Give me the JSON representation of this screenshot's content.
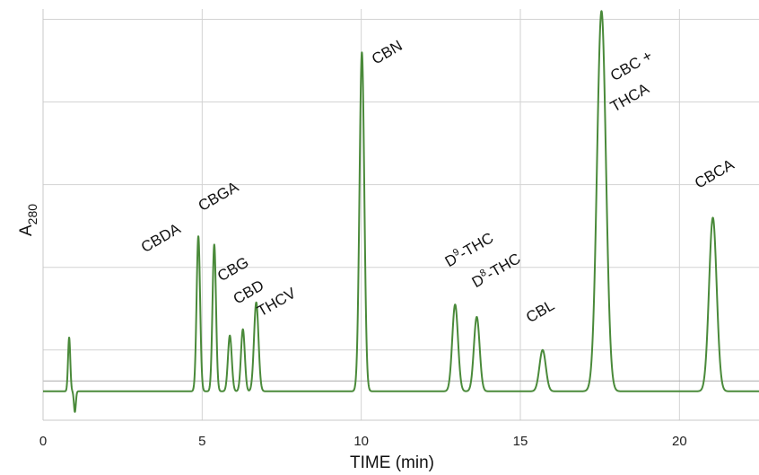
{
  "chart_data": {
    "type": "line",
    "xlabel": "TIME (min)",
    "ylabel_main": "A",
    "ylabel_sub": "280",
    "xlim": [
      0,
      22.5
    ],
    "ylim": [
      -0.7,
      9.25
    ],
    "x_ticks": [
      0,
      5,
      10,
      15,
      20
    ],
    "x_tick_labels": [
      "0",
      "5",
      "10",
      "15",
      "20"
    ],
    "y_gridlines": [
      1,
      3,
      5,
      7,
      9
    ],
    "grid": true,
    "baseline_marker": 0.25,
    "series": [
      {
        "color": "#4a8a3a",
        "baseline": 0,
        "peaks": [
          {
            "x": 0.82,
            "height": 1.3,
            "width": 0.035
          },
          {
            "x": 1.0,
            "height": -0.5,
            "width": 0.03
          },
          {
            "x": 4.88,
            "height": 3.75,
            "width": 0.055
          },
          {
            "x": 5.38,
            "height": 3.55,
            "width": 0.055
          },
          {
            "x": 5.87,
            "height": 1.35,
            "width": 0.06
          },
          {
            "x": 6.28,
            "height": 1.5,
            "width": 0.06
          },
          {
            "x": 6.7,
            "height": 2.15,
            "width": 0.07
          },
          {
            "x": 10.02,
            "height": 8.2,
            "width": 0.075
          },
          {
            "x": 12.95,
            "height": 2.1,
            "width": 0.09
          },
          {
            "x": 13.63,
            "height": 1.8,
            "width": 0.09
          },
          {
            "x": 15.7,
            "height": 1.0,
            "width": 0.1
          },
          {
            "x": 17.55,
            "height": 9.2,
            "width": 0.14
          },
          {
            "x": 21.05,
            "height": 4.2,
            "width": 0.12
          }
        ]
      }
    ],
    "annotations": [
      {
        "text": "CBDA",
        "x": 3.2,
        "y": 3.35
      },
      {
        "text": "CBGA",
        "x": 5.0,
        "y": 4.35
      },
      {
        "text": "CBG",
        "x": 5.6,
        "y": 2.65
      },
      {
        "text": "CBD",
        "x": 6.1,
        "y": 2.1
      },
      {
        "text": "THCV",
        "x": 6.85,
        "y": 1.8
      },
      {
        "text": "CBN",
        "x": 10.45,
        "y": 7.9
      },
      {
        "text": "D",
        "sup": "9",
        "rest": "-THC",
        "x": 12.75,
        "y": 3.0
      },
      {
        "text": "D",
        "sup": "8",
        "rest": "-THC",
        "x": 13.6,
        "y": 2.5
      },
      {
        "text": "CBL",
        "x": 15.3,
        "y": 1.65
      },
      {
        "text": "CBC +",
        "x": 17.95,
        "y": 7.5
      },
      {
        "text": "THCA",
        "x": 17.95,
        "y": 6.75
      },
      {
        "text": "CBCA",
        "x": 20.6,
        "y": 4.9
      }
    ]
  }
}
